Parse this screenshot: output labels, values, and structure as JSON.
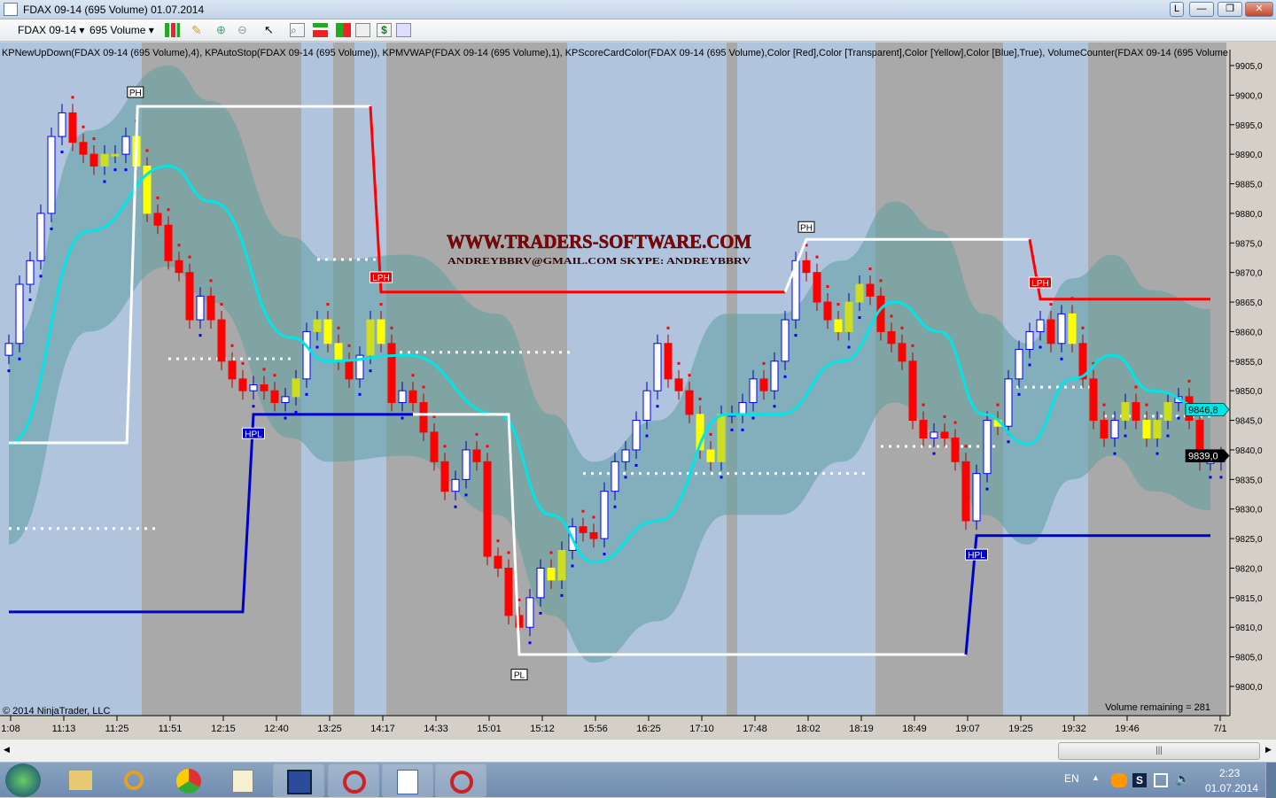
{
  "window": {
    "title": "FDAX 09-14 (695 Volume)  01.07.2014",
    "buttons": [
      "L",
      "—",
      "❐",
      "✕"
    ]
  },
  "toolbar": {
    "instrument": "FDAX 09-14",
    "period": "695 Volume",
    "icons": [
      "candlestick-style-icon",
      "pencil-draw-icon",
      "zoom-in-icon",
      "zoom-out-icon",
      "cursor-icon",
      "magnifier-icon",
      "indicators-icon",
      "strategies-icon",
      "chart-template-icon",
      "dollar-icon",
      "properties-icon"
    ]
  },
  "chart": {
    "indicator_label": "KPNewUpDown(FDAX 09-14 (695 Volume),4), KPAutoStop(FDAX 09-14 (695 Volume)), KPMVWAP(FDAX 09-14 (695 Volume),1), KPScoreCardColor(FDAX 09-14 (695 Volume),Color [Red],Color [Transparent],Color [Yellow],Color [Blue],True), VolumeCounter(FDAX 09-14 (695 Volume",
    "watermark_title": "WWW.TRADERS-SOFTWARE.COM",
    "watermark_sub": "ANDREYBBRV@GMAIL.COM   SKYPE: ANDREYBBRV",
    "copyright": "© 2014 NinjaTrader, LLC",
    "volume_remaining": "Volume remaining = 281",
    "colors": {
      "up": "#0000ff",
      "down": "#ff0000",
      "signal": "#ffff00",
      "vwap": "#00e5e5",
      "band": "#5f9ea0",
      "stop_long": "#0000cd",
      "stop_short": "#ff0000",
      "stop_neutral": "#ffffff",
      "session_a": "#b0c4de",
      "session_b": "#a9a9a9"
    },
    "price_axis": {
      "min": 9800,
      "max": 9905,
      "step": 5,
      "labels": [
        "9905,0",
        "9900,0",
        "9895,0",
        "9890,0",
        "9885,0",
        "9880,0",
        "9875,0",
        "9870,0",
        "9865,0",
        "9860,0",
        "9855,0",
        "9850,0",
        "9845,0",
        "9840,0",
        "9835,0",
        "9830,0",
        "9825,0",
        "9820,0",
        "9815,0",
        "9810,0",
        "9805,0",
        "9800,0"
      ]
    },
    "price_markers": [
      {
        "label": "9846,8",
        "value": 9846.8,
        "color": "#00e5e5"
      },
      {
        "label": "9839,0",
        "value": 9839.0,
        "color": "#000000"
      }
    ],
    "time_axis": [
      "1:08",
      "11:13",
      "11:25",
      "11:51",
      "12:15",
      "12:40",
      "13:25",
      "14:17",
      "14:33",
      "15:01",
      "15:12",
      "15:56",
      "16:25",
      "17:10",
      "17:48",
      "18:02",
      "18:19",
      "18:49",
      "19:07",
      "19:25",
      "19:32",
      "19:46",
      "7/1"
    ],
    "sessions": [
      [
        0,
        13,
        "a"
      ],
      [
        13,
        28,
        "b"
      ],
      [
        28,
        31,
        "a"
      ],
      [
        31,
        33,
        "b"
      ],
      [
        33,
        36,
        "a"
      ],
      [
        36,
        53,
        "b"
      ],
      [
        53,
        68,
        "a"
      ],
      [
        68,
        69,
        "b"
      ],
      [
        69,
        82,
        "a"
      ],
      [
        82,
        94,
        "b"
      ],
      [
        94,
        102,
        "a"
      ],
      [
        102,
        115,
        "b"
      ]
    ],
    "closes": [
      9858,
      9868,
      9872,
      9880,
      9893,
      9897,
      9892,
      9890,
      9888,
      9890,
      9890,
      9893,
      9888,
      9880,
      9878,
      9872,
      9870,
      9862,
      9866,
      9862,
      9855,
      9852,
      9850,
      9851,
      9850,
      9848,
      9849,
      9852,
      9860,
      9862,
      9858,
      9855,
      9852,
      9856,
      9862,
      9858,
      9848,
      9850,
      9848,
      9843,
      9838,
      9833,
      9835,
      9840,
      9838,
      9822,
      9820,
      9812,
      9810,
      9815,
      9820,
      9818,
      9823,
      9827,
      9826,
      9825,
      9833,
      9838,
      9840,
      9845,
      9850,
      9858,
      9852,
      9850,
      9846,
      9840,
      9838,
      9846,
      9846,
      9848,
      9852,
      9850,
      9855,
      9862,
      9872,
      9870,
      9865,
      9862,
      9860,
      9865,
      9868,
      9866,
      9860,
      9858,
      9855,
      9845,
      9842,
      9843,
      9842,
      9838,
      9828,
      9836,
      9845,
      9844,
      9852,
      9857,
      9860,
      9862,
      9858,
      9863,
      9858,
      9852,
      9845,
      9842,
      9845,
      9848,
      9845,
      9842,
      9845,
      9848,
      9849,
      9845,
      9838,
      9838,
      9839
    ],
    "signal_bars": [
      9,
      10,
      12,
      13,
      27,
      29,
      30,
      31,
      34,
      35,
      51,
      52,
      65,
      66,
      67,
      78,
      79,
      80,
      93,
      100,
      105,
      107,
      108,
      109
    ],
    "vwap": [
      [
        0,
        9841
      ],
      [
        7.5,
        9877
      ],
      [
        15,
        9888
      ],
      [
        19,
        9882
      ],
      [
        26.5,
        9859
      ],
      [
        30,
        9855
      ],
      [
        37.5,
        9856
      ],
      [
        46,
        9846
      ],
      [
        51,
        9829
      ],
      [
        55,
        9821
      ],
      [
        61,
        9828
      ],
      [
        67.5,
        9846
      ],
      [
        72.5,
        9846
      ],
      [
        78.3,
        9855
      ],
      [
        83.3,
        9865
      ],
      [
        87.5,
        9860
      ],
      [
        91.7,
        9846
      ],
      [
        95.8,
        9841
      ],
      [
        100,
        9852
      ],
      [
        103.8,
        9856
      ],
      [
        107.5,
        9850
      ],
      [
        113,
        9846.8
      ]
    ],
    "band_halfwidth": 17,
    "autostop": [
      {
        "color": "#ffffff",
        "pts": [
          [
            0,
            9841.2
          ],
          [
            11.1,
            9841.2
          ],
          [
            12.1,
            9898.1
          ],
          [
            34,
            9898.1
          ]
        ]
      },
      {
        "color": "#ff0000",
        "pts": [
          [
            34,
            9898.1
          ],
          [
            35,
            9866.7
          ],
          [
            73,
            9866.7
          ]
        ]
      },
      {
        "color": "#ffffff",
        "pts": [
          [
            73,
            9866.7
          ],
          [
            75,
            9875.6
          ],
          [
            96,
            9875.6
          ]
        ]
      },
      {
        "color": "#ff0000",
        "pts": [
          [
            96,
            9875.6
          ],
          [
            97,
            9865.5
          ],
          [
            113,
            9865.5
          ]
        ]
      },
      {
        "color": "#0000cd",
        "pts": [
          [
            0,
            9812.6
          ],
          [
            22,
            9812.6
          ],
          [
            23,
            9846
          ],
          [
            38,
            9846
          ]
        ]
      },
      {
        "color": "#ffffff",
        "pts": [
          [
            38,
            9846
          ],
          [
            47,
            9846
          ],
          [
            48,
            9805.4
          ],
          [
            90,
            9805.4
          ]
        ]
      },
      {
        "color": "#0000cd",
        "pts": [
          [
            90,
            9805.4
          ],
          [
            91,
            9825.5
          ],
          [
            113,
            9825.5
          ]
        ]
      }
    ],
    "levels": [
      [
        0,
        14,
        9826.7
      ],
      [
        15,
        26.7,
        9855.4
      ],
      [
        29,
        35,
        9872.2
      ],
      [
        36,
        53,
        9856.5
      ],
      [
        54,
        81,
        9836
      ],
      [
        82,
        93,
        9840.6
      ],
      [
        94,
        102,
        9850.6
      ],
      [
        103,
        113,
        9845.7
      ]
    ],
    "swing_labels": [
      {
        "text": "PH",
        "bar": 11.9,
        "price": 9900.5,
        "style": "black"
      },
      {
        "text": "LPH",
        "bar": 35,
        "price": 9869.2,
        "style": "red"
      },
      {
        "text": "HPL",
        "bar": 23,
        "price": 9842.8,
        "style": "blue"
      },
      {
        "text": "PH",
        "bar": 75,
        "price": 9877.7,
        "style": "black"
      },
      {
        "text": "PL",
        "bar": 48,
        "price": 9802,
        "style": "black"
      },
      {
        "text": "LPH",
        "bar": 97,
        "price": 9868.3,
        "style": "red"
      },
      {
        "text": "HPL",
        "bar": 91,
        "price": 9822.3,
        "style": "blue"
      }
    ]
  },
  "taskbar": {
    "apps": [
      "start-button",
      "file-explorer",
      "search-app",
      "chrome",
      "notepad-edit",
      "save-app",
      "ninjatrader-1",
      "wordpad",
      "ninjatrader-2"
    ],
    "language": "EN",
    "time": "2:23",
    "date": "01.07.2014"
  }
}
